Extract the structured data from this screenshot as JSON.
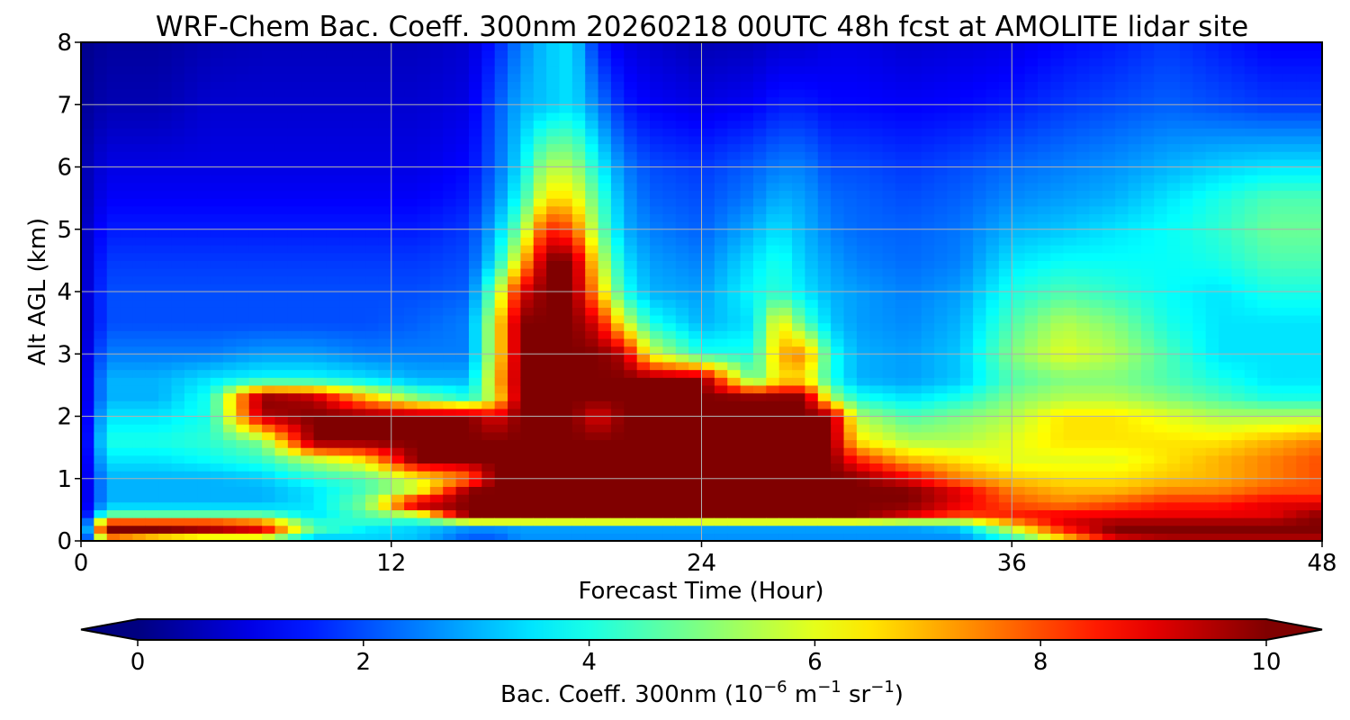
{
  "chart_data": {
    "type": "heatmap",
    "title": "WRF-Chem Bac. Coeff. 300nm  20260218 00UTC 48h fcst at AMOLITE lidar site",
    "xlabel": "Forecast Time (Hour)",
    "ylabel": "Alt AGL (km)",
    "xlim": [
      0,
      48
    ],
    "ylim": [
      0,
      8
    ],
    "x_ticks": [
      0,
      12,
      24,
      36,
      48
    ],
    "y_ticks": [
      0,
      1,
      2,
      3,
      4,
      5,
      6,
      7,
      8
    ],
    "grid": true,
    "colormap": "jet",
    "colorbar": {
      "label_prefix": "Bac. Coeff. 300nm  (10",
      "label_exp1": "−6",
      "label_mid": " m",
      "label_exp2": "−1",
      "label_end": " sr",
      "label_exp3": "−1",
      "label_close": ")",
      "vmin": 0,
      "vmax": 10,
      "ticks": [
        0,
        2,
        4,
        6,
        8,
        10
      ],
      "extend": "both",
      "orientation": "horizontal"
    },
    "x_hours": [
      0,
      1,
      3,
      5,
      7,
      9,
      11,
      13,
      15,
      16,
      17,
      18,
      19,
      20,
      21,
      22,
      24,
      26,
      27,
      28,
      29,
      30,
      32,
      34,
      36,
      38,
      40,
      42,
      44,
      46,
      48
    ],
    "z_km": [
      0,
      0.1,
      0.25,
      0.4,
      0.6,
      0.8,
      1.0,
      1.3,
      1.6,
      2.0,
      2.3,
      2.6,
      3.0,
      3.5,
      4.0,
      4.5,
      5.0,
      5.5,
      6.0,
      7.0,
      8.0
    ],
    "values": [
      [
        0.3,
        4.0,
        1.5,
        1.5,
        1.5,
        1.5,
        4.0,
        3.5,
        2.5,
        2.5,
        3.0,
        3.0,
        3.0,
        3.0,
        3.0,
        3.0,
        3.0,
        3.0,
        3.0,
        3.0,
        3.0,
        3.0,
        3.0,
        3.0,
        4.0,
        6.0,
        8.0,
        9.0,
        9.0,
        9.0,
        9.0
      ],
      [
        0.5,
        10,
        10,
        9.0,
        9.0,
        4.5,
        3.0,
        3.0,
        2.0,
        2.0,
        2.5,
        2.5,
        2.5,
        2.5,
        2.5,
        2.5,
        2.5,
        2.5,
        2.5,
        2.5,
        2.5,
        2.5,
        2.5,
        2.5,
        4.5,
        7.5,
        10,
        10,
        10,
        10,
        10
      ],
      [
        0.5,
        10,
        10,
        10,
        9.0,
        4.5,
        4.0,
        3.5,
        3.0,
        3.0,
        3.0,
        3.0,
        3.0,
        3.0,
        3.0,
        3.0,
        3.0,
        3.0,
        3.0,
        3.0,
        3.0,
        3.0,
        3.0,
        3.5,
        6.5,
        9.0,
        10,
        10,
        10,
        10,
        10
      ],
      [
        0.5,
        5.0,
        5.0,
        5.0,
        5.0,
        3.5,
        4.5,
        5.0,
        10,
        10,
        10,
        10,
        10,
        10,
        10,
        10,
        10,
        10,
        10,
        10,
        10,
        10,
        9.0,
        8.0,
        8.5,
        9.0,
        9.0,
        9.0,
        9.0,
        9.0,
        10
      ],
      [
        0.5,
        3.0,
        3.0,
        3.0,
        3.0,
        3.5,
        5.0,
        10,
        10,
        10,
        10,
        10,
        10,
        10,
        10,
        10,
        10,
        10,
        10,
        10,
        10,
        10,
        10,
        9.0,
        8.0,
        7.5,
        8.0,
        8.5,
        8.5,
        9.0,
        9.0
      ],
      [
        0.5,
        3.0,
        3.0,
        3.0,
        3.0,
        3.5,
        4.5,
        6.0,
        10,
        10,
        10,
        10,
        10,
        10,
        10,
        10,
        10,
        10,
        10,
        10,
        10,
        10,
        10,
        9.0,
        7.5,
        7.0,
        7.0,
        7.5,
        7.5,
        8.0,
        8.0
      ],
      [
        0.5,
        3.0,
        3.0,
        3.0,
        3.2,
        4.0,
        4.5,
        6.0,
        7.5,
        10,
        10,
        10,
        10,
        10,
        10,
        10,
        10,
        10,
        10,
        10,
        10,
        10,
        9.0,
        7.5,
        6.8,
        6.5,
        6.5,
        6.8,
        7.0,
        7.5,
        8.0
      ],
      [
        0.5,
        3.5,
        3.5,
        3.8,
        4.2,
        5.5,
        6.5,
        10,
        10,
        10,
        10,
        10,
        10,
        10,
        10,
        10,
        10,
        10,
        10,
        10,
        10,
        8.5,
        7.0,
        6.5,
        6.0,
        6.0,
        6.0,
        6.5,
        7.0,
        7.5,
        8.0
      ],
      [
        0.5,
        4.0,
        4.0,
        4.2,
        5.0,
        10,
        10,
        10,
        10,
        10,
        10,
        10,
        10,
        10,
        10,
        10,
        10,
        10,
        10,
        10,
        10,
        6.5,
        5.5,
        5.5,
        6.0,
        6.5,
        6.5,
        6.5,
        6.5,
        7.0,
        7.5
      ],
      [
        0.5,
        3.5,
        3.5,
        4.0,
        9.5,
        10,
        10,
        10,
        10,
        9.0,
        10,
        10,
        10,
        9.0,
        10,
        10,
        10,
        10,
        10,
        10,
        10,
        5.5,
        4.5,
        5.0,
        5.5,
        6.5,
        6.5,
        6.0,
        5.5,
        5.5,
        5.5
      ],
      [
        0.5,
        3.0,
        3.0,
        4.0,
        10,
        9.5,
        7.0,
        5.0,
        4.0,
        6.0,
        10,
        10,
        10,
        10,
        10,
        10,
        10,
        10,
        10,
        10,
        5.5,
        4.0,
        3.5,
        4.0,
        5.0,
        5.5,
        5.5,
        5.0,
        4.5,
        4.0,
        4.0
      ],
      [
        0.5,
        3.0,
        3.0,
        3.5,
        3.8,
        3.8,
        3.5,
        3.0,
        3.0,
        6.5,
        10,
        10,
        10,
        10,
        10,
        10,
        10,
        4.5,
        6.5,
        6.5,
        4.0,
        3.0,
        2.8,
        3.2,
        4.5,
        5.0,
        5.0,
        4.5,
        4.0,
        3.5,
        3.5
      ],
      [
        0.5,
        2.5,
        2.5,
        2.5,
        2.8,
        2.8,
        2.5,
        2.5,
        2.5,
        6.0,
        10,
        10,
        10,
        10,
        9.5,
        6.0,
        4.0,
        4.0,
        7.0,
        7.5,
        4.0,
        3.0,
        2.8,
        3.2,
        5.0,
        6.0,
        5.5,
        4.5,
        3.5,
        3.5,
        3.5
      ],
      [
        0.5,
        2.0,
        2.0,
        2.0,
        2.0,
        2.0,
        2.0,
        2.2,
        2.5,
        6.0,
        10,
        10,
        10,
        9.0,
        6.0,
        4.0,
        3.0,
        3.5,
        6.5,
        4.5,
        3.2,
        2.8,
        2.6,
        3.0,
        4.5,
        5.5,
        5.0,
        4.0,
        3.5,
        3.5,
        3.5
      ],
      [
        0.5,
        2.0,
        2.0,
        2.0,
        2.0,
        2.0,
        2.0,
        2.0,
        2.2,
        5.0,
        9.0,
        10,
        10,
        7.0,
        4.0,
        3.0,
        2.8,
        3.8,
        4.2,
        3.5,
        3.0,
        2.8,
        2.5,
        2.8,
        4.0,
        4.5,
        4.2,
        3.8,
        3.5,
        4.0,
        4.0
      ],
      [
        0.5,
        1.8,
        1.8,
        1.8,
        1.8,
        1.8,
        1.8,
        1.8,
        2.0,
        3.5,
        6.5,
        10,
        10,
        6.0,
        3.5,
        2.8,
        2.5,
        3.5,
        4.0,
        3.2,
        2.8,
        2.5,
        2.3,
        2.5,
        3.5,
        3.8,
        3.8,
        3.8,
        4.0,
        4.5,
        4.5
      ],
      [
        0.5,
        1.5,
        1.5,
        1.5,
        1.5,
        1.5,
        1.5,
        1.5,
        1.8,
        3.0,
        5.0,
        8.5,
        8.0,
        5.0,
        3.0,
        2.5,
        2.2,
        3.0,
        3.5,
        3.0,
        2.5,
        2.3,
        2.2,
        2.4,
        3.0,
        3.2,
        3.5,
        3.8,
        4.2,
        4.8,
        4.8
      ],
      [
        0.4,
        1.2,
        1.2,
        1.2,
        1.2,
        1.2,
        1.2,
        1.2,
        1.5,
        2.5,
        4.0,
        6.5,
        6.5,
        4.5,
        2.8,
        2.2,
        2.0,
        2.5,
        3.0,
        2.8,
        2.3,
        2.2,
        2.0,
        2.2,
        2.6,
        2.8,
        3.0,
        3.5,
        4.0,
        4.5,
        4.5
      ],
      [
        0.4,
        1.0,
        1.0,
        1.0,
        1.0,
        1.0,
        1.0,
        1.0,
        1.3,
        2.2,
        3.5,
        5.5,
        5.5,
        3.8,
        2.5,
        2.0,
        1.8,
        2.2,
        2.5,
        2.5,
        2.0,
        2.0,
        1.8,
        2.0,
        2.3,
        2.5,
        2.7,
        3.0,
        3.3,
        3.5,
        3.5
      ],
      [
        0.2,
        0.5,
        0.5,
        0.8,
        0.8,
        0.8,
        0.8,
        0.8,
        1.0,
        2.0,
        3.0,
        3.2,
        3.5,
        2.5,
        1.5,
        1.2,
        1.0,
        1.2,
        1.5,
        1.5,
        1.3,
        1.3,
        1.2,
        1.3,
        1.5,
        1.8,
        2.0,
        2.2,
        2.0,
        1.8,
        1.8
      ],
      [
        0.1,
        0.3,
        0.3,
        0.5,
        0.6,
        0.6,
        0.6,
        0.6,
        0.8,
        1.5,
        2.5,
        3.2,
        3.5,
        1.5,
        1.0,
        0.8,
        0.5,
        0.6,
        0.8,
        0.8,
        1.0,
        1.0,
        0.8,
        0.9,
        1.0,
        1.3,
        1.5,
        1.8,
        1.5,
        1.2,
        1.2
      ]
    ]
  }
}
